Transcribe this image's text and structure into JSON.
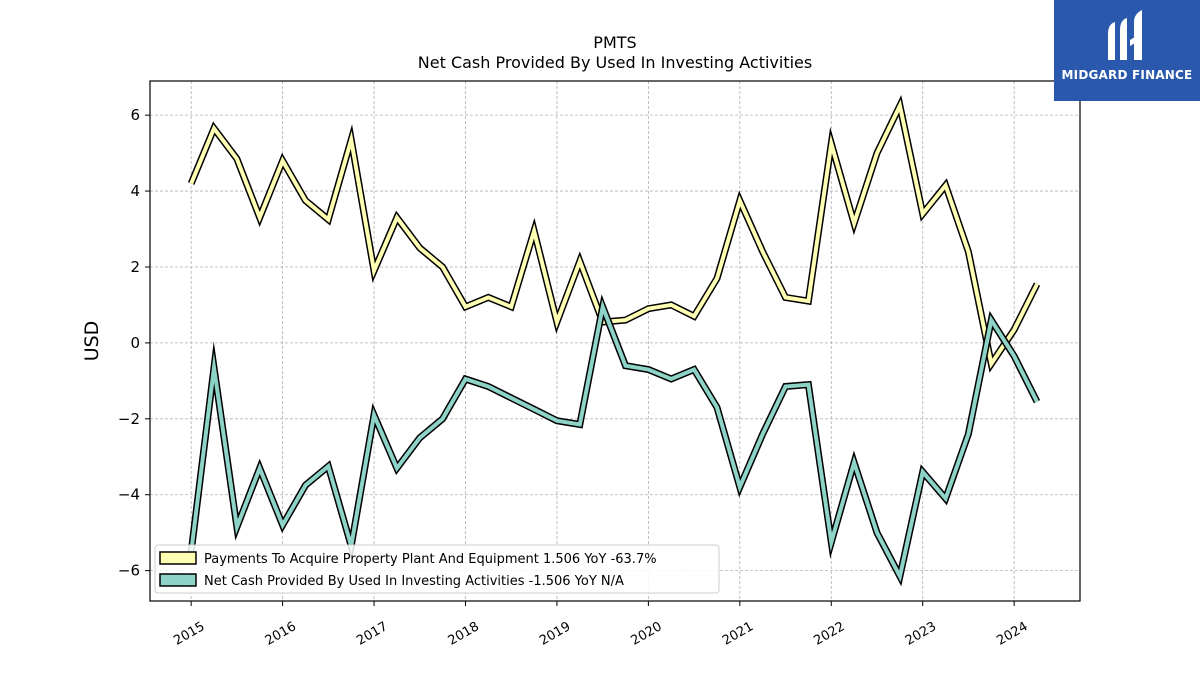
{
  "chart_data": {
    "type": "line",
    "title": "PMTS",
    "subtitle": "Net Cash Provided By Used In Investing Activities",
    "xlabel": "",
    "ylabel": "USD",
    "ylim": [
      -6.8,
      6.9
    ],
    "yticks": [
      6,
      4,
      2,
      0,
      -2,
      -4,
      -6
    ],
    "ytick_labels": [
      "6",
      "4",
      "2",
      "0",
      "−2",
      "−4",
      "−6"
    ],
    "xlim": [
      2014.55,
      2024.72
    ],
    "xticks": [
      2015,
      2016,
      2017,
      2018,
      2019,
      2020,
      2021,
      2022,
      2023,
      2024
    ],
    "xtick_labels": [
      "2015",
      "2016",
      "2017",
      "2018",
      "2019",
      "2020",
      "2021",
      "2022",
      "2023",
      "2024"
    ],
    "grid": true,
    "legend_position": "lower-left",
    "x": [
      2015.0,
      2015.25,
      2015.5,
      2015.75,
      2016.0,
      2016.25,
      2016.5,
      2016.75,
      2017.0,
      2017.25,
      2017.5,
      2017.75,
      2018.0,
      2018.25,
      2018.5,
      2018.75,
      2019.0,
      2019.25,
      2019.5,
      2019.75,
      2020.0,
      2020.25,
      2020.5,
      2020.75,
      2021.0,
      2021.25,
      2021.5,
      2021.75,
      2022.0,
      2022.25,
      2022.5,
      2022.75,
      2023.0,
      2023.25,
      2023.5,
      2023.75,
      2024.0,
      2024.25
    ],
    "series": [
      {
        "name": "Payments To Acquire Property Plant And Equipment",
        "legend_label": "Payments To Acquire Property Plant And Equipment  1.506 YoY -63.7%",
        "color": "#ffffb3",
        "values": [
          4.2,
          5.65,
          4.85,
          3.3,
          4.8,
          3.75,
          3.25,
          5.35,
          1.9,
          3.3,
          2.5,
          2.0,
          0.95,
          1.2,
          0.95,
          2.95,
          0.55,
          2.15,
          0.55,
          0.6,
          0.9,
          1.0,
          0.7,
          1.7,
          3.75,
          2.4,
          1.2,
          1.1,
          5.25,
          3.15,
          5.0,
          6.25,
          3.4,
          4.15,
          2.4,
          -0.55,
          0.35,
          1.55
        ]
      },
      {
        "name": "Net Cash Provided By Used In Investing Activities",
        "legend_label": "Net Cash Provided By Used In Investing Activities  -1.506 YoY N/A",
        "color": "#8dd3c7",
        "values": [
          -5.5,
          -0.65,
          -4.85,
          -3.3,
          -4.8,
          -3.75,
          -3.25,
          -5.35,
          -1.9,
          -3.3,
          -2.5,
          -2.0,
          -0.95,
          -1.15,
          -1.45,
          -1.75,
          -2.05,
          -2.15,
          0.95,
          -0.6,
          -0.7,
          -0.95,
          -0.7,
          -1.7,
          -3.8,
          -2.4,
          -1.15,
          -1.1,
          -5.25,
          -3.15,
          -5.0,
          -6.15,
          -3.4,
          -4.1,
          -2.4,
          0.6,
          -0.35,
          -1.55
        ]
      }
    ]
  },
  "logo": {
    "text": "MIDGARD FINANCE",
    "background": "#2a58ad",
    "icon": "midgard-logo-icon"
  }
}
